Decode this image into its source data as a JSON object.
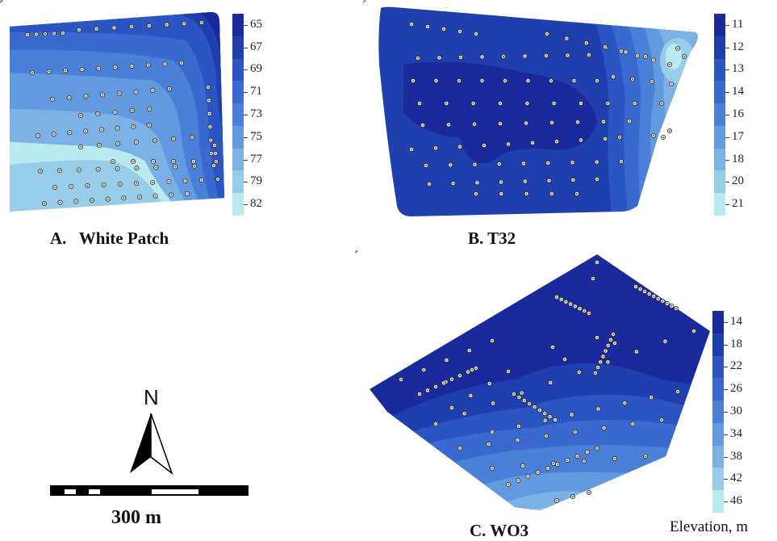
{
  "maps": [
    {
      "id": "white-patch",
      "caption": "A.   White Patch",
      "legend_values": [
        "65",
        "67",
        "69",
        "71",
        "73",
        "75",
        "77",
        "79",
        "82"
      ],
      "legend_colors": [
        "#1a2a9c",
        "#1f3fae",
        "#2a55c2",
        "#3a6ad0",
        "#4a80d8",
        "#629ae0",
        "#7cb1e6",
        "#98cdea",
        "#b8eaf0"
      ]
    },
    {
      "id": "t32",
      "caption": "B. T32",
      "legend_values": [
        "11",
        "12",
        "13",
        "14",
        "16",
        "17",
        "18",
        "20",
        "21"
      ],
      "legend_colors": [
        "#1a2a9c",
        "#1f3fae",
        "#2a55c2",
        "#3a6ad0",
        "#4a80d8",
        "#629ae0",
        "#7cb1e6",
        "#98cdea",
        "#b8eaf0"
      ]
    },
    {
      "id": "wo3",
      "caption": "C. WO3",
      "legend_values": [
        "14",
        "18",
        "22",
        "26",
        "30",
        "34",
        "38",
        "42",
        "46"
      ],
      "legend_colors": [
        "#1a2a9c",
        "#1f3fae",
        "#2a55c2",
        "#3a6ad0",
        "#4a80d8",
        "#629ae0",
        "#7cb1e6",
        "#98cdea",
        "#b8eaf0"
      ]
    }
  ],
  "elevation_label": "Elevation, m",
  "compass_label": "N",
  "scale_label": "300 m"
}
